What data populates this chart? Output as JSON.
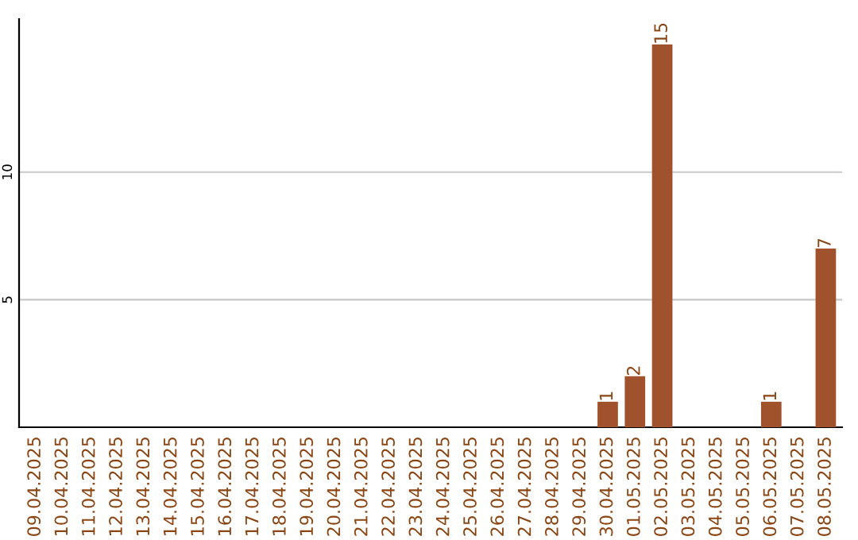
{
  "chart_data": {
    "type": "bar",
    "categories": [
      "09.04.2025",
      "10.04.2025",
      "11.04.2025",
      "12.04.2025",
      "13.04.2025",
      "14.04.2025",
      "15.04.2025",
      "16.04.2025",
      "17.04.2025",
      "18.04.2025",
      "19.04.2025",
      "20.04.2025",
      "21.04.2025",
      "22.04.2025",
      "23.04.2025",
      "24.04.2025",
      "25.04.2025",
      "26.04.2025",
      "27.04.2025",
      "28.04.2025",
      "29.04.2025",
      "30.04.2025",
      "01.05.2025",
      "02.05.2025",
      "03.05.2025",
      "04.05.2025",
      "05.05.2025",
      "06.05.2025",
      "07.05.2025",
      "08.05.2025"
    ],
    "values": [
      0,
      0,
      0,
      0,
      0,
      0,
      0,
      0,
      0,
      0,
      0,
      0,
      0,
      0,
      0,
      0,
      0,
      0,
      0,
      0,
      0,
      1,
      2,
      15,
      0,
      0,
      0,
      1,
      0,
      7
    ],
    "value_labels": [
      null,
      null,
      null,
      null,
      null,
      null,
      null,
      null,
      null,
      null,
      null,
      null,
      null,
      null,
      null,
      null,
      null,
      null,
      null,
      null,
      null,
      "1",
      "2",
      "15",
      null,
      null,
      null,
      "1",
      null,
      "7"
    ],
    "color": "#a0522d",
    "ylim": [
      0,
      16
    ],
    "yticks": [
      5,
      10
    ],
    "grid": "y"
  }
}
